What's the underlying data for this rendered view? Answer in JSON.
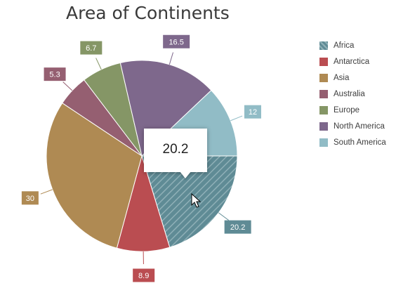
{
  "chart_data": {
    "type": "pie",
    "title": "Area of Continents",
    "slices": [
      {
        "label": "Africa",
        "value": 20.2,
        "color": "#5f8b95",
        "pattern": "hatched"
      },
      {
        "label": "Antarctica",
        "value": 8.9,
        "color": "#ba4d51"
      },
      {
        "label": "Asia",
        "value": 30,
        "color": "#af8a53"
      },
      {
        "label": "Australia",
        "value": 5.3,
        "color": "#955f71"
      },
      {
        "label": "Europe",
        "value": 6.7,
        "color": "#859666"
      },
      {
        "label": "North America",
        "value": 16.5,
        "color": "#7e688c"
      },
      {
        "label": "South America",
        "value": 12,
        "color": "#91bcc6"
      }
    ],
    "legend_position": "right",
    "hovered_slice": "Africa",
    "tooltip_text": "20.2"
  }
}
